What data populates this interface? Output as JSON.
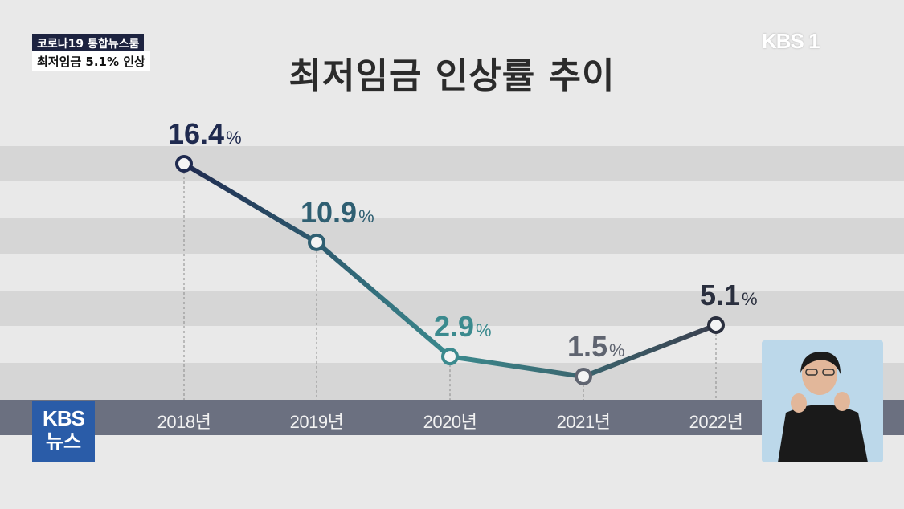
{
  "broadcast": {
    "program": "코로나19 통합뉴스룸",
    "headline": "최저임금 5.1% 인상",
    "channel_logo": "KBS 1",
    "news_logo_line1": "KBS",
    "news_logo_line2": "뉴스"
  },
  "chart_data": {
    "type": "line",
    "title": "최저임금 인상률 추이",
    "categories": [
      "2018년",
      "2019년",
      "2020년",
      "2021년",
      "2022년"
    ],
    "values": [
      16.4,
      10.9,
      2.9,
      1.5,
      5.1
    ],
    "value_labels": [
      "16.4",
      "10.9",
      "2.9",
      "1.5",
      "5.1"
    ],
    "unit": "%",
    "xlabel": "",
    "ylabel": "",
    "legend": "none",
    "grid": "horizontal bands",
    "colors": {
      "line_start": "#1f2a4f",
      "line_mid": "#3b8a8e",
      "line_end": "#3a3f4e",
      "points": [
        "#1f2a4f",
        "#2f5f72",
        "#3b8a8e",
        "#5f6470",
        "#2a2f3e"
      ],
      "labels": [
        "#1f2a4f",
        "#2f5f72",
        "#3b8a8e",
        "#5f6470",
        "#2a2f3e"
      ]
    }
  }
}
